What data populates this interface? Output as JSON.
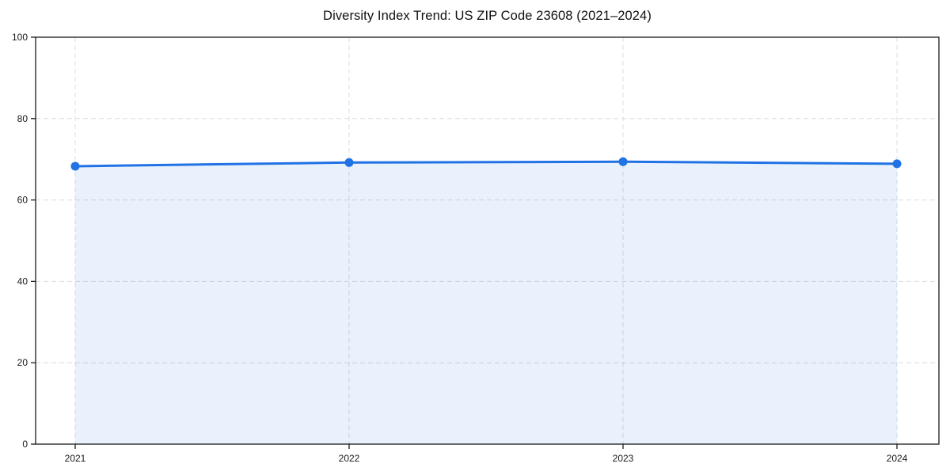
{
  "figure": {
    "title": "Diversity Index Trend: US ZIP Code 23608 (2021–2024)"
  },
  "chart_data": {
    "type": "area",
    "title": "Diversity Index Trend: US ZIP Code 23608 (2021–2024)",
    "categories": [
      "2021",
      "2022",
      "2023",
      "2024"
    ],
    "series": [
      {
        "name": "Diversity Index",
        "values": [
          68.3,
          69.2,
          69.4,
          68.9
        ]
      }
    ],
    "xlabel": "",
    "ylabel": "",
    "ylim": [
      0,
      100
    ],
    "yticks": [
      0,
      20,
      40,
      60,
      80,
      100
    ],
    "grid": true,
    "grid_style": "dashed",
    "legend": false,
    "colors": {
      "line": "#2172e5",
      "marker": "#2172e5",
      "area": "#2172e5",
      "area_opacity": 0.1,
      "grid": "#dcdcdc",
      "spine": "#1a1a1a",
      "tick_text": "#1a1a1a",
      "background": "#ffffff"
    }
  }
}
